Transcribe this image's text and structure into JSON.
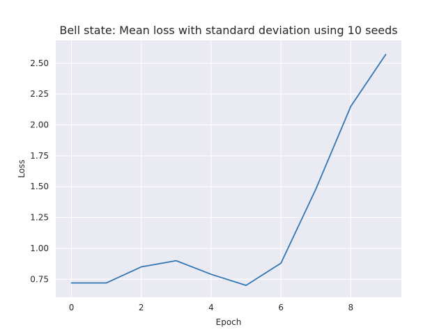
{
  "chart_data": {
    "type": "line",
    "title": "Bell state: Mean loss with standard deviation using 10 seeds",
    "xlabel": "Epoch",
    "ylabel": "Loss",
    "x": [
      0,
      1,
      2,
      3,
      4,
      5,
      6,
      7,
      8,
      9
    ],
    "series": [
      {
        "name": "mean loss",
        "color": "#2f76b2",
        "values": [
          0.72,
          0.72,
          0.85,
          0.9,
          0.79,
          0.7,
          0.88,
          1.48,
          2.15,
          2.57
        ]
      }
    ],
    "xlim": [
      -0.45,
      9.45
    ],
    "ylim": [
      0.605,
      2.685
    ],
    "xticks": [
      0,
      2,
      4,
      6,
      8
    ],
    "xtick_labels": [
      "0",
      "2",
      "4",
      "6",
      "8"
    ],
    "yticks": [
      0.75,
      1.0,
      1.25,
      1.5,
      1.75,
      2.0,
      2.25,
      2.5
    ],
    "ytick_labels": [
      "0.75",
      "1.00",
      "1.25",
      "1.50",
      "1.75",
      "2.00",
      "2.25",
      "2.50"
    ],
    "grid": true,
    "background": "#eaeaf2"
  }
}
